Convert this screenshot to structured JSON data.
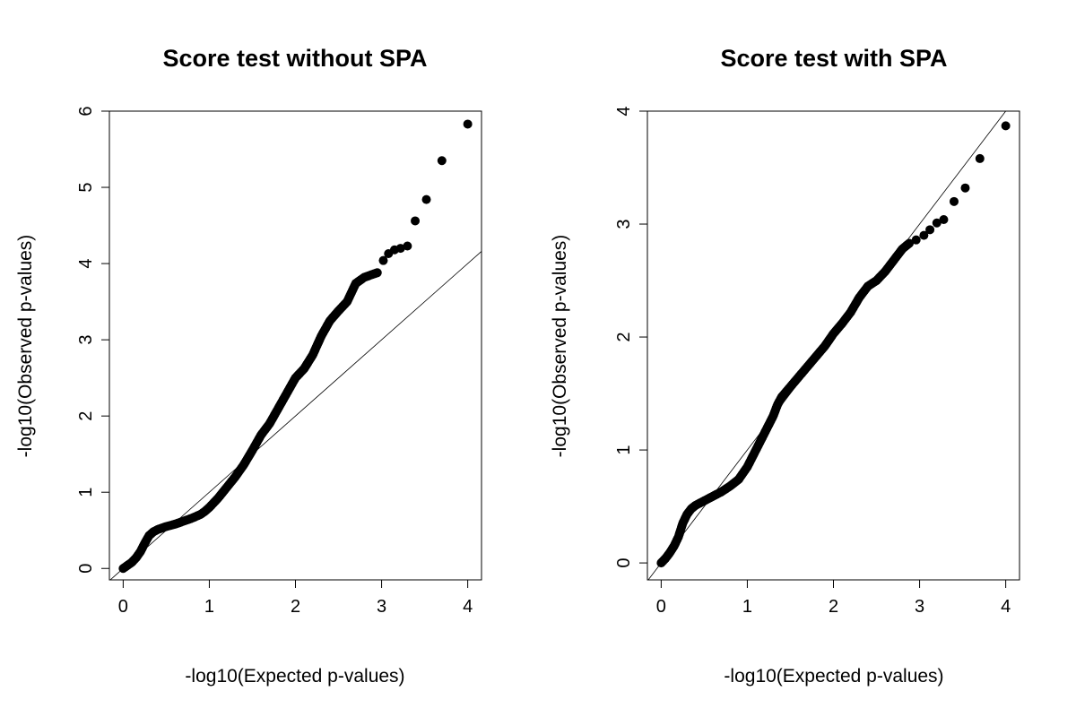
{
  "chart_data": [
    {
      "type": "scatter",
      "title": "Score test without SPA",
      "xlabel": "-log10(Expected p-values)",
      "ylabel": "-log10(Observed p-values)",
      "xlim": [
        -0.16,
        4.16
      ],
      "ylim": [
        -0.15,
        6.0
      ],
      "xticks": [
        0,
        1,
        2,
        3,
        4
      ],
      "yticks": [
        0,
        1,
        2,
        3,
        4,
        5,
        6
      ],
      "reference_line": "y = x",
      "grid": false,
      "curve": [
        [
          0.0,
          0.0
        ],
        [
          0.05,
          0.04
        ],
        [
          0.1,
          0.08
        ],
        [
          0.15,
          0.14
        ],
        [
          0.2,
          0.22
        ],
        [
          0.25,
          0.33
        ],
        [
          0.3,
          0.43
        ],
        [
          0.35,
          0.48
        ],
        [
          0.4,
          0.51
        ],
        [
          0.45,
          0.53
        ],
        [
          0.5,
          0.55
        ],
        [
          0.6,
          0.58
        ],
        [
          0.7,
          0.62
        ],
        [
          0.8,
          0.66
        ],
        [
          0.9,
          0.71
        ],
        [
          0.95,
          0.75
        ],
        [
          1.0,
          0.8
        ],
        [
          1.1,
          0.92
        ],
        [
          1.2,
          1.06
        ],
        [
          1.3,
          1.2
        ],
        [
          1.4,
          1.36
        ],
        [
          1.5,
          1.55
        ],
        [
          1.6,
          1.75
        ],
        [
          1.7,
          1.9
        ],
        [
          1.8,
          2.1
        ],
        [
          1.9,
          2.3
        ],
        [
          2.0,
          2.5
        ],
        [
          2.1,
          2.62
        ],
        [
          2.2,
          2.8
        ],
        [
          2.3,
          3.05
        ],
        [
          2.4,
          3.25
        ],
        [
          2.5,
          3.38
        ],
        [
          2.6,
          3.5
        ],
        [
          2.65,
          3.62
        ],
        [
          2.7,
          3.74
        ],
        [
          2.8,
          3.82
        ],
        [
          2.9,
          3.86
        ],
        [
          2.95,
          3.88
        ]
      ],
      "points": [
        [
          3.02,
          4.04
        ],
        [
          3.08,
          4.13
        ],
        [
          3.15,
          4.18
        ],
        [
          3.22,
          4.2
        ],
        [
          3.3,
          4.23
        ],
        [
          3.39,
          4.56
        ],
        [
          3.52,
          4.84
        ],
        [
          3.7,
          5.35
        ],
        [
          4.0,
          5.83
        ]
      ]
    },
    {
      "type": "scatter",
      "title": "Score test with SPA",
      "xlabel": "-log10(Expected p-values)",
      "ylabel": "-log10(Observed p-values)",
      "xlim": [
        -0.16,
        4.16
      ],
      "ylim": [
        -0.15,
        4.0
      ],
      "xticks": [
        0,
        1,
        2,
        3,
        4
      ],
      "yticks": [
        0,
        1,
        2,
        3,
        4
      ],
      "reference_line": "y = x",
      "grid": false,
      "curve": [
        [
          0.0,
          0.0
        ],
        [
          0.05,
          0.04
        ],
        [
          0.1,
          0.09
        ],
        [
          0.15,
          0.15
        ],
        [
          0.2,
          0.23
        ],
        [
          0.25,
          0.35
        ],
        [
          0.3,
          0.43
        ],
        [
          0.35,
          0.48
        ],
        [
          0.4,
          0.51
        ],
        [
          0.5,
          0.55
        ],
        [
          0.6,
          0.59
        ],
        [
          0.7,
          0.63
        ],
        [
          0.8,
          0.68
        ],
        [
          0.9,
          0.74
        ],
        [
          1.0,
          0.85
        ],
        [
          1.1,
          1.0
        ],
        [
          1.2,
          1.15
        ],
        [
          1.3,
          1.3
        ],
        [
          1.35,
          1.4
        ],
        [
          1.4,
          1.47
        ],
        [
          1.5,
          1.56
        ],
        [
          1.6,
          1.65
        ],
        [
          1.7,
          1.74
        ],
        [
          1.8,
          1.83
        ],
        [
          1.9,
          1.92
        ],
        [
          2.0,
          2.03
        ],
        [
          2.1,
          2.12
        ],
        [
          2.2,
          2.22
        ],
        [
          2.3,
          2.35
        ],
        [
          2.4,
          2.45
        ],
        [
          2.5,
          2.5
        ],
        [
          2.6,
          2.58
        ],
        [
          2.7,
          2.68
        ],
        [
          2.8,
          2.78
        ],
        [
          2.88,
          2.83
        ]
      ],
      "points": [
        [
          2.96,
          2.86
        ],
        [
          3.05,
          2.9
        ],
        [
          3.12,
          2.95
        ],
        [
          3.2,
          3.01
        ],
        [
          3.28,
          3.04
        ],
        [
          3.4,
          3.2
        ],
        [
          3.53,
          3.32
        ],
        [
          3.7,
          3.58
        ],
        [
          4.0,
          3.87
        ]
      ]
    }
  ]
}
